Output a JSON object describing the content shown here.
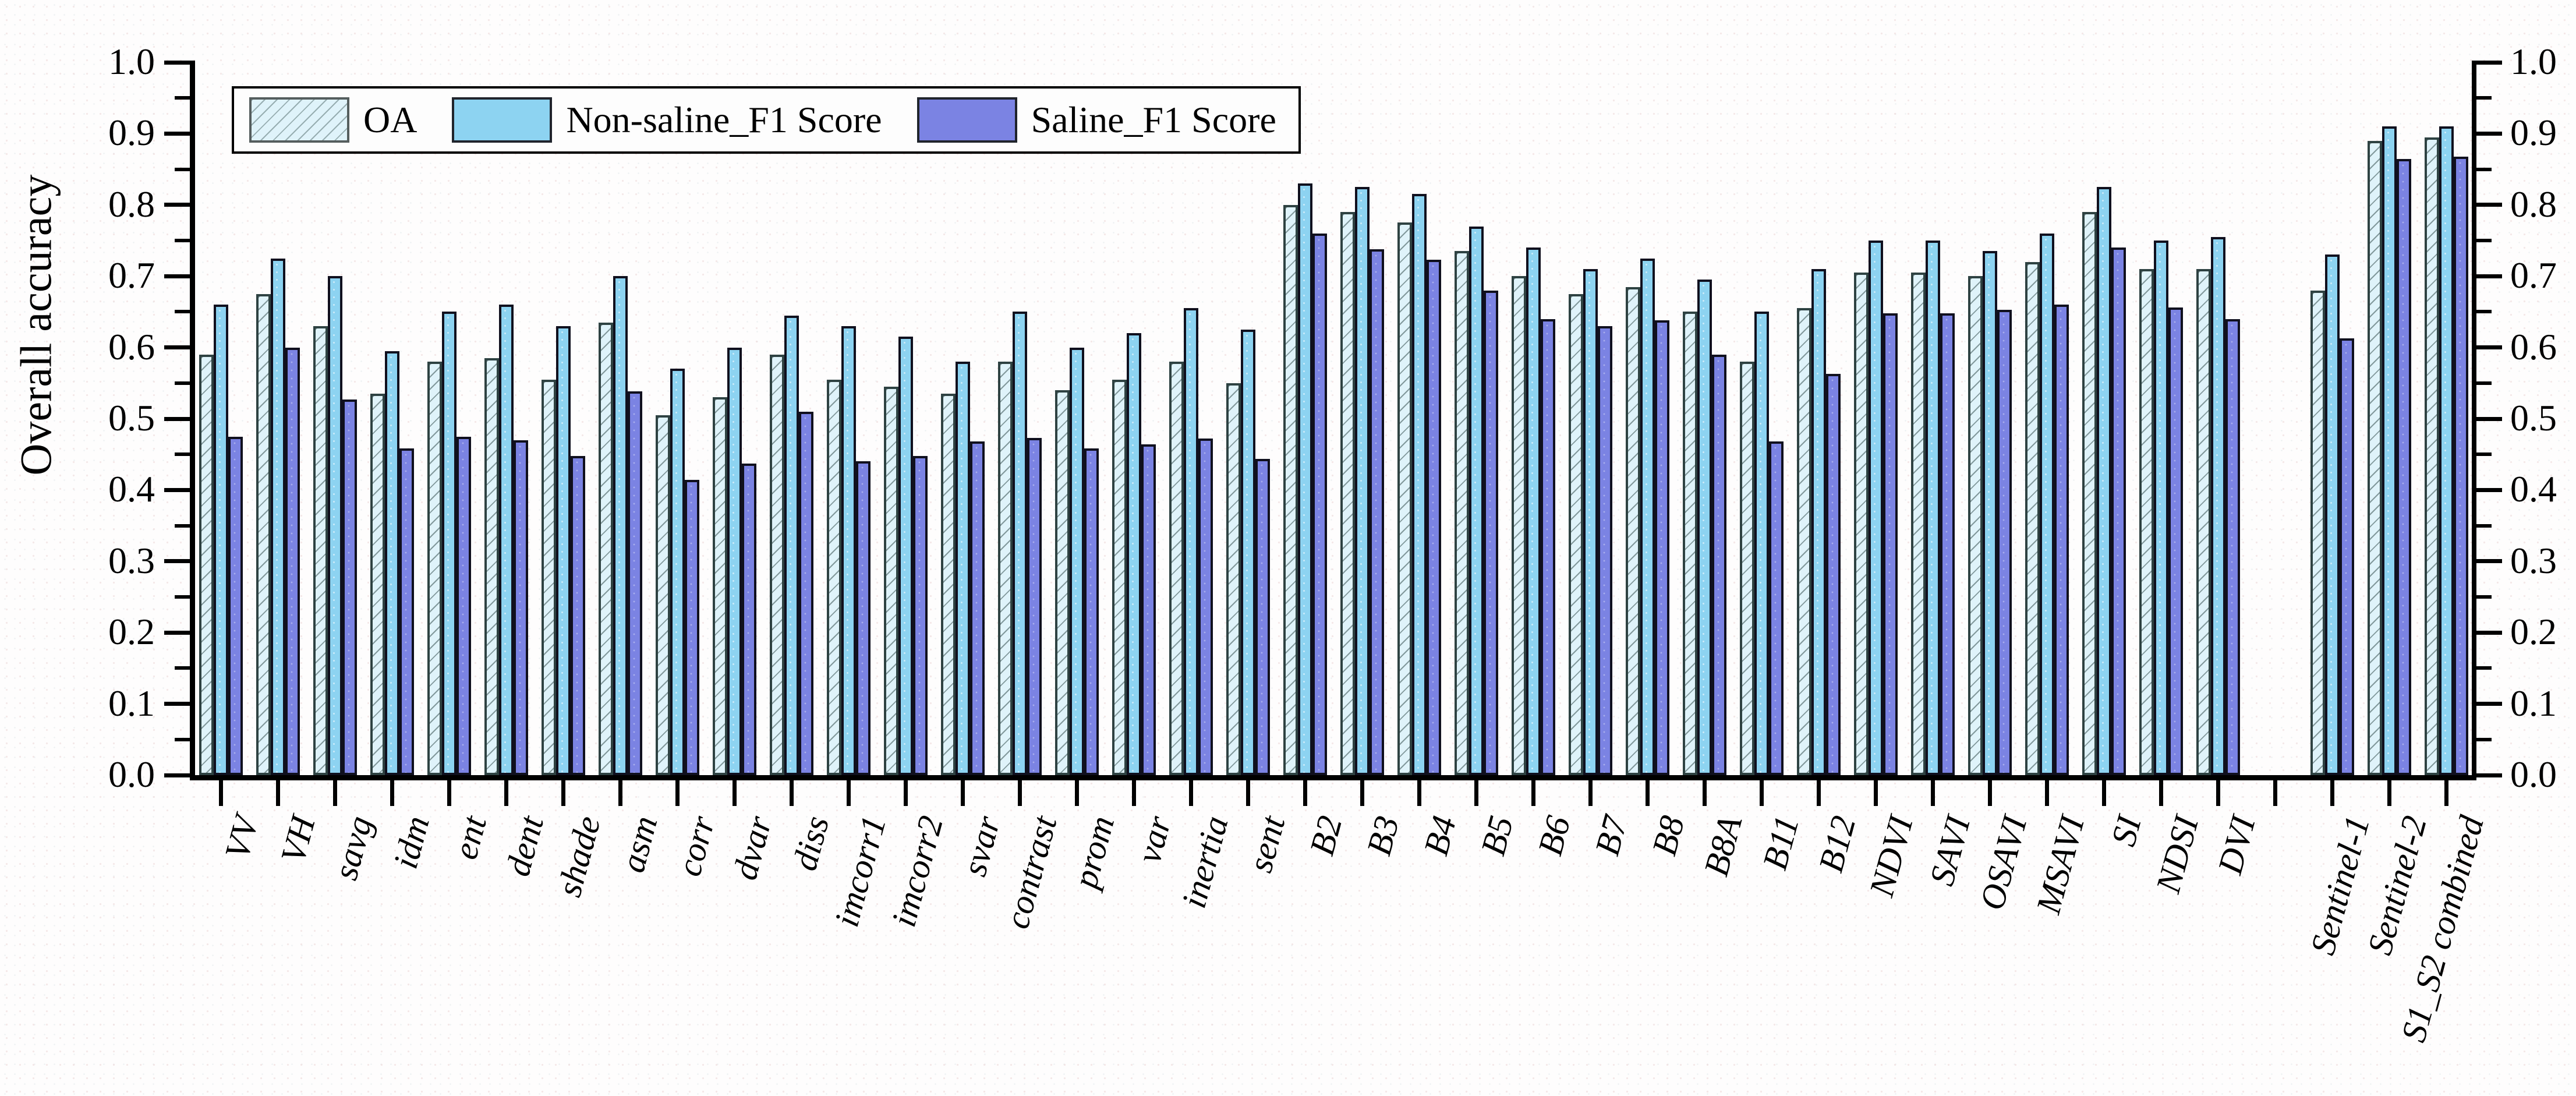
{
  "figure": {
    "ylabel": "Overall accuracy"
  },
  "chart_data": {
    "type": "bar",
    "title": "",
    "xlabel": "",
    "ylabel": "Overall accuracy",
    "ylim": [
      0.0,
      1.0
    ],
    "y_tick_step": 0.1,
    "y_minor_tick_step": 0.05,
    "y_tick_labels": [
      "0.0",
      "0.1",
      "0.2",
      "0.3",
      "0.4",
      "0.5",
      "0.6",
      "0.7",
      "0.8",
      "0.9",
      "1.0"
    ],
    "grid": false,
    "dual_y_axis": true,
    "legend_position": "top-left",
    "gap_after_category": "DVI",
    "categories": [
      "VV",
      "VH",
      "savg",
      "idm",
      "ent",
      "dent",
      "shade",
      "asm",
      "corr",
      "dvar",
      "diss",
      "imcorr1",
      "imcorr2",
      "svar",
      "contrast",
      "prom",
      "var",
      "inertia",
      "sent",
      "B2",
      "B3",
      "B4",
      "B5",
      "B6",
      "B7",
      "B8",
      "B8A",
      "B11",
      "B12",
      "NDVI",
      "SAVI",
      "OSAVI",
      "MSAVI",
      "SI",
      "NDSI",
      "DVI",
      "Sentinel-1",
      "Sentinel-2",
      "S1_S2 combined"
    ],
    "series": [
      {
        "name": "OA",
        "color": "#dff3fa",
        "hatch": "diagonal",
        "values": [
          0.59,
          0.675,
          0.63,
          0.535,
          0.58,
          0.585,
          0.555,
          0.635,
          0.505,
          0.53,
          0.59,
          0.555,
          0.545,
          0.535,
          0.58,
          0.54,
          0.555,
          0.58,
          0.55,
          0.8,
          0.79,
          0.775,
          0.735,
          0.7,
          0.675,
          0.685,
          0.65,
          0.58,
          0.655,
          0.705,
          0.705,
          0.7,
          0.72,
          0.79,
          0.71,
          0.71,
          0.68,
          0.89,
          0.895
        ]
      },
      {
        "name": "Non-saline_F1 Score",
        "color": "#8dd3f1",
        "hatch": "none",
        "values": [
          0.66,
          0.725,
          0.7,
          0.595,
          0.65,
          0.66,
          0.63,
          0.7,
          0.57,
          0.6,
          0.645,
          0.63,
          0.615,
          0.58,
          0.65,
          0.6,
          0.62,
          0.655,
          0.625,
          0.83,
          0.825,
          0.815,
          0.77,
          0.74,
          0.71,
          0.725,
          0.695,
          0.65,
          0.71,
          0.75,
          0.75,
          0.735,
          0.76,
          0.825,
          0.75,
          0.755,
          0.73,
          0.91,
          0.91
        ]
      },
      {
        "name": "Saline_F1 Score",
        "color": "#7b83e3",
        "hatch": "none",
        "values": [
          0.475,
          0.6,
          0.527,
          0.458,
          0.475,
          0.47,
          0.448,
          0.538,
          0.414,
          0.437,
          0.51,
          0.44,
          0.448,
          0.468,
          0.473,
          0.458,
          0.464,
          0.472,
          0.444,
          0.76,
          0.738,
          0.723,
          0.68,
          0.64,
          0.63,
          0.638,
          0.59,
          0.468,
          0.563,
          0.648,
          0.648,
          0.653,
          0.66,
          0.74,
          0.656,
          0.64,
          0.613,
          0.864,
          0.868
        ]
      }
    ]
  }
}
